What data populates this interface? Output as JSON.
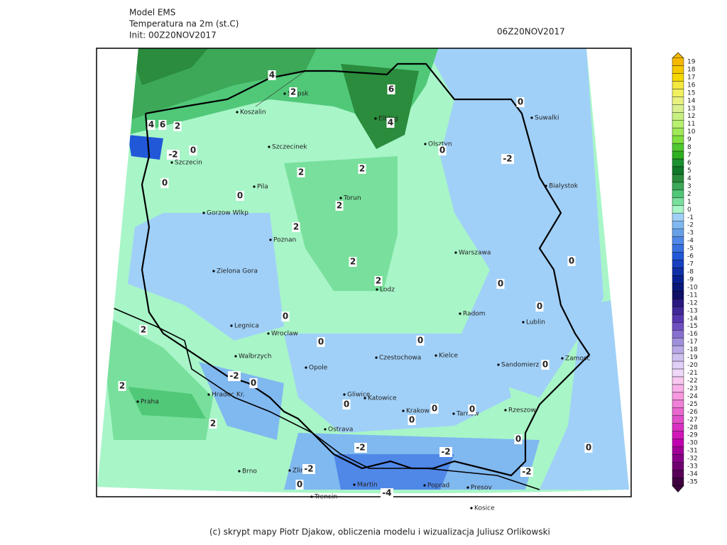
{
  "header": {
    "model": "Model EMS",
    "variable": "Temperatura na 2m (st.C)",
    "init": "Init: 00Z20NOV2017",
    "valid": "06Z20NOV2017"
  },
  "cities": [
    "Slupsk",
    "Koszalin",
    "Elblag",
    "Olsztyn",
    "Suwalki",
    "Szczecinek",
    "Szczecin",
    "Pila",
    "Torun",
    "Bialystok",
    "Gorzow Wlkp",
    "Poznan",
    "Warszawa",
    "Zielona Gora",
    "Lodz",
    "Radom",
    "Legnica",
    "Wroclaw",
    "Lublin",
    "Walbrzych",
    "Czestochowa",
    "Kielce",
    "Opole",
    "Sandomierz",
    "Zamosc",
    "Hradec Kr.",
    "Praha",
    "Gliwice",
    "Katowice",
    "Krakow",
    "Tarnow",
    "Rzeszow",
    "Ostrava",
    "Zlin",
    "Brno",
    "Martin",
    "Poprad",
    "Presov",
    "Trencin",
    "Kosice"
  ],
  "contour_labels": [
    4,
    6,
    2,
    4,
    4,
    6,
    2,
    -2,
    0,
    0,
    -2,
    0,
    2,
    2,
    0,
    0,
    2,
    2,
    2,
    2,
    0,
    0,
    0,
    0,
    2,
    0,
    0,
    0,
    -2,
    0,
    2,
    2,
    0,
    0,
    0,
    0,
    -2,
    -2,
    0,
    0,
    -2,
    0,
    -2,
    -4
  ],
  "colorbar": {
    "labels": [
      19,
      18,
      17,
      16,
      15,
      14,
      13,
      12,
      11,
      10,
      9,
      8,
      7,
      6,
      5,
      4,
      3,
      2,
      1,
      0,
      -1,
      -2,
      -3,
      -4,
      -5,
      -6,
      -7,
      -8,
      -9,
      -10,
      -11,
      -12,
      -13,
      -14,
      -15,
      -16,
      -17,
      -18,
      -19,
      -20,
      -21,
      -22,
      -23,
      -24,
      -25,
      -26,
      -27,
      -28,
      -29,
      -30,
      -31,
      -32,
      -33,
      -34,
      -35
    ],
    "colors": [
      "#f5b800",
      "#f5c800",
      "#f5d800",
      "#f5e840",
      "#f0f060",
      "#e8f080",
      "#d8f090",
      "#c8f080",
      "#b8f070",
      "#a0e858",
      "#80e040",
      "#50c830",
      "#30b020",
      "#1a9030",
      "#107828",
      "#2a8c3c",
      "#3ca858",
      "#50c878",
      "#78e09c",
      "#a8f5c8",
      "#a0d0f8",
      "#80b8f0",
      "#68a0e8",
      "#5088e8",
      "#3870e0",
      "#2058d8",
      "#1840c0",
      "#1030a8",
      "#082090",
      "#081878",
      "#101068",
      "#281880",
      "#402898",
      "#5838b0",
      "#7050c0",
      "#8870d0",
      "#a090dc",
      "#b8a8e8",
      "#d0c0f0",
      "#e0d0f8",
      "#f0d8f8",
      "#f8c8f0",
      "#f8b0e8",
      "#f898e0",
      "#f080d8",
      "#e868d0",
      "#e050c8",
      "#d830c0",
      "#d018b8",
      "#c000b0",
      "#a00098",
      "#880088",
      "#700070",
      "#580058",
      "#400040"
    ]
  },
  "footer": "(c) skrypt mapy Piotr Djakow, obliczenia modelu i wizualizacja Juliusz Orlikowski"
}
